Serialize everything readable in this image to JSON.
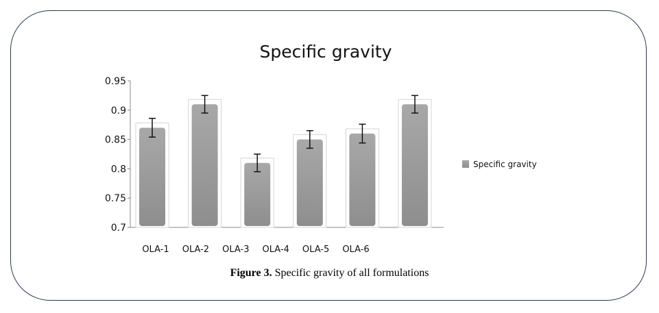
{
  "chart_data": {
    "type": "bar",
    "title": "Specific gravity",
    "categories": [
      "OLA-1",
      "OLA-2",
      "OLA-3",
      "OLA-4",
      "OLA-5",
      "OLA-6"
    ],
    "series": [
      {
        "name": "Specific gravity",
        "values": [
          0.87,
          0.91,
          0.81,
          0.85,
          0.86,
          0.91
        ],
        "error": [
          0.016,
          0.015,
          0.015,
          0.015,
          0.016,
          0.015
        ]
      }
    ],
    "ylim": [
      0.7,
      0.95
    ],
    "yticks": [
      "0.7",
      "0.75",
      "0.8",
      "0.85",
      "0.9",
      "0.95"
    ],
    "legend_position": "right",
    "bar_color": "#9a9a9a",
    "xlabel": "",
    "ylabel": ""
  },
  "caption": {
    "label": "Figure 3.",
    "text": " Specific gravity of all formulations"
  }
}
